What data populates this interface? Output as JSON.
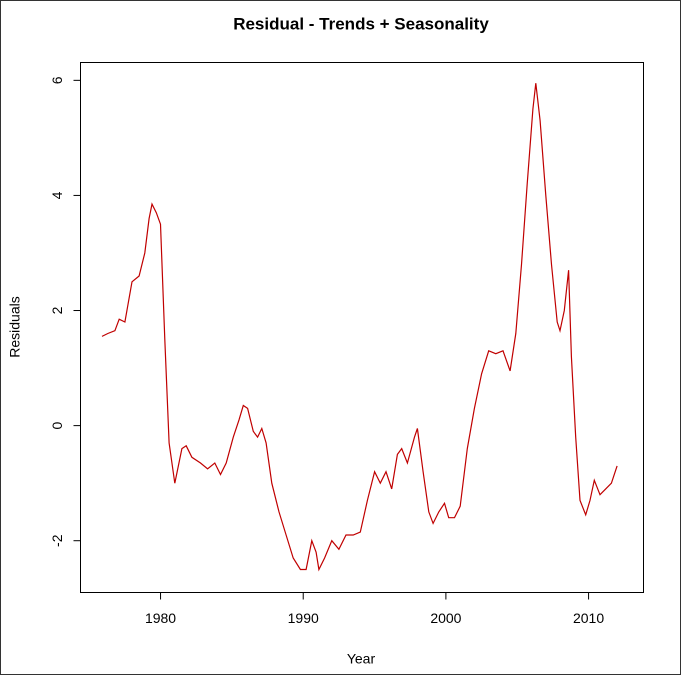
{
  "chart_data": {
    "type": "line",
    "title": "Residual - Trends + Seasonality",
    "x_label": "Year",
    "y_label": "Residuals",
    "x": [
      1975.9,
      1976.3,
      1976.8,
      1977.1,
      1977.5,
      1978.0,
      1978.5,
      1978.9,
      1979.2,
      1979.4,
      1979.7,
      1980.0,
      1980.3,
      1980.6,
      1981.0,
      1981.5,
      1981.8,
      1982.2,
      1982.8,
      1983.3,
      1983.8,
      1984.2,
      1984.6,
      1985.1,
      1985.5,
      1985.8,
      1986.1,
      1986.5,
      1986.8,
      1987.1,
      1987.4,
      1987.8,
      1988.3,
      1988.8,
      1989.3,
      1989.8,
      1990.2,
      1990.6,
      1990.9,
      1991.1,
      1991.5,
      1992.0,
      1992.5,
      1993.0,
      1993.5,
      1994.0,
      1994.5,
      1995.0,
      1995.4,
      1995.8,
      1996.2,
      1996.6,
      1996.9,
      1997.3,
      1997.8,
      1998.0,
      1998.4,
      1998.8,
      1999.1,
      1999.5,
      1999.9,
      2000.2,
      2000.6,
      2001.0,
      2001.5,
      2002.0,
      2002.5,
      2003.0,
      2003.5,
      2004.0,
      2004.5,
      2004.9,
      2005.3,
      2005.7,
      2006.1,
      2006.3,
      2006.6,
      2007.0,
      2007.4,
      2007.8,
      2008.0,
      2008.3,
      2008.6,
      2008.8,
      2009.1,
      2009.4,
      2009.8,
      2010.1,
      2010.4,
      2010.8,
      2011.2,
      2011.6,
      2012.0
    ],
    "series": [
      {
        "color": "#c00000",
        "values": [
          1.55,
          1.6,
          1.65,
          1.85,
          1.8,
          2.5,
          2.6,
          3.0,
          3.6,
          3.85,
          3.7,
          3.5,
          1.5,
          -0.3,
          -1.0,
          -0.4,
          -0.35,
          -0.55,
          -0.65,
          -0.75,
          -0.65,
          -0.85,
          -0.65,
          -0.2,
          0.1,
          0.35,
          0.3,
          -0.1,
          -0.2,
          -0.05,
          -0.3,
          -1.0,
          -1.5,
          -1.9,
          -2.3,
          -2.5,
          -2.5,
          -2.0,
          -2.2,
          -2.5,
          -2.3,
          -2.0,
          -2.15,
          -1.9,
          -1.9,
          -1.85,
          -1.3,
          -0.8,
          -1.0,
          -0.8,
          -1.1,
          -0.5,
          -0.4,
          -0.65,
          -0.2,
          -0.05,
          -0.8,
          -1.5,
          -1.7,
          -1.5,
          -1.35,
          -1.6,
          -1.6,
          -1.4,
          -0.4,
          0.3,
          0.9,
          1.3,
          1.25,
          1.3,
          0.95,
          1.6,
          2.8,
          4.2,
          5.5,
          5.95,
          5.3,
          4.0,
          2.8,
          1.8,
          1.65,
          2.0,
          2.7,
          1.2,
          -0.2,
          -1.3,
          -1.55,
          -1.3,
          -0.95,
          -1.2,
          -1.1,
          -1.0,
          -0.7
        ]
      }
    ],
    "xlim": [
      1974.39,
      2013.85
    ],
    "ylim": [
      -2.9,
      6.31
    ],
    "xticks": [
      1980,
      1990,
      2000,
      2010
    ],
    "yticks": [
      -2,
      0,
      2,
      4,
      6
    ],
    "grid": false
  }
}
